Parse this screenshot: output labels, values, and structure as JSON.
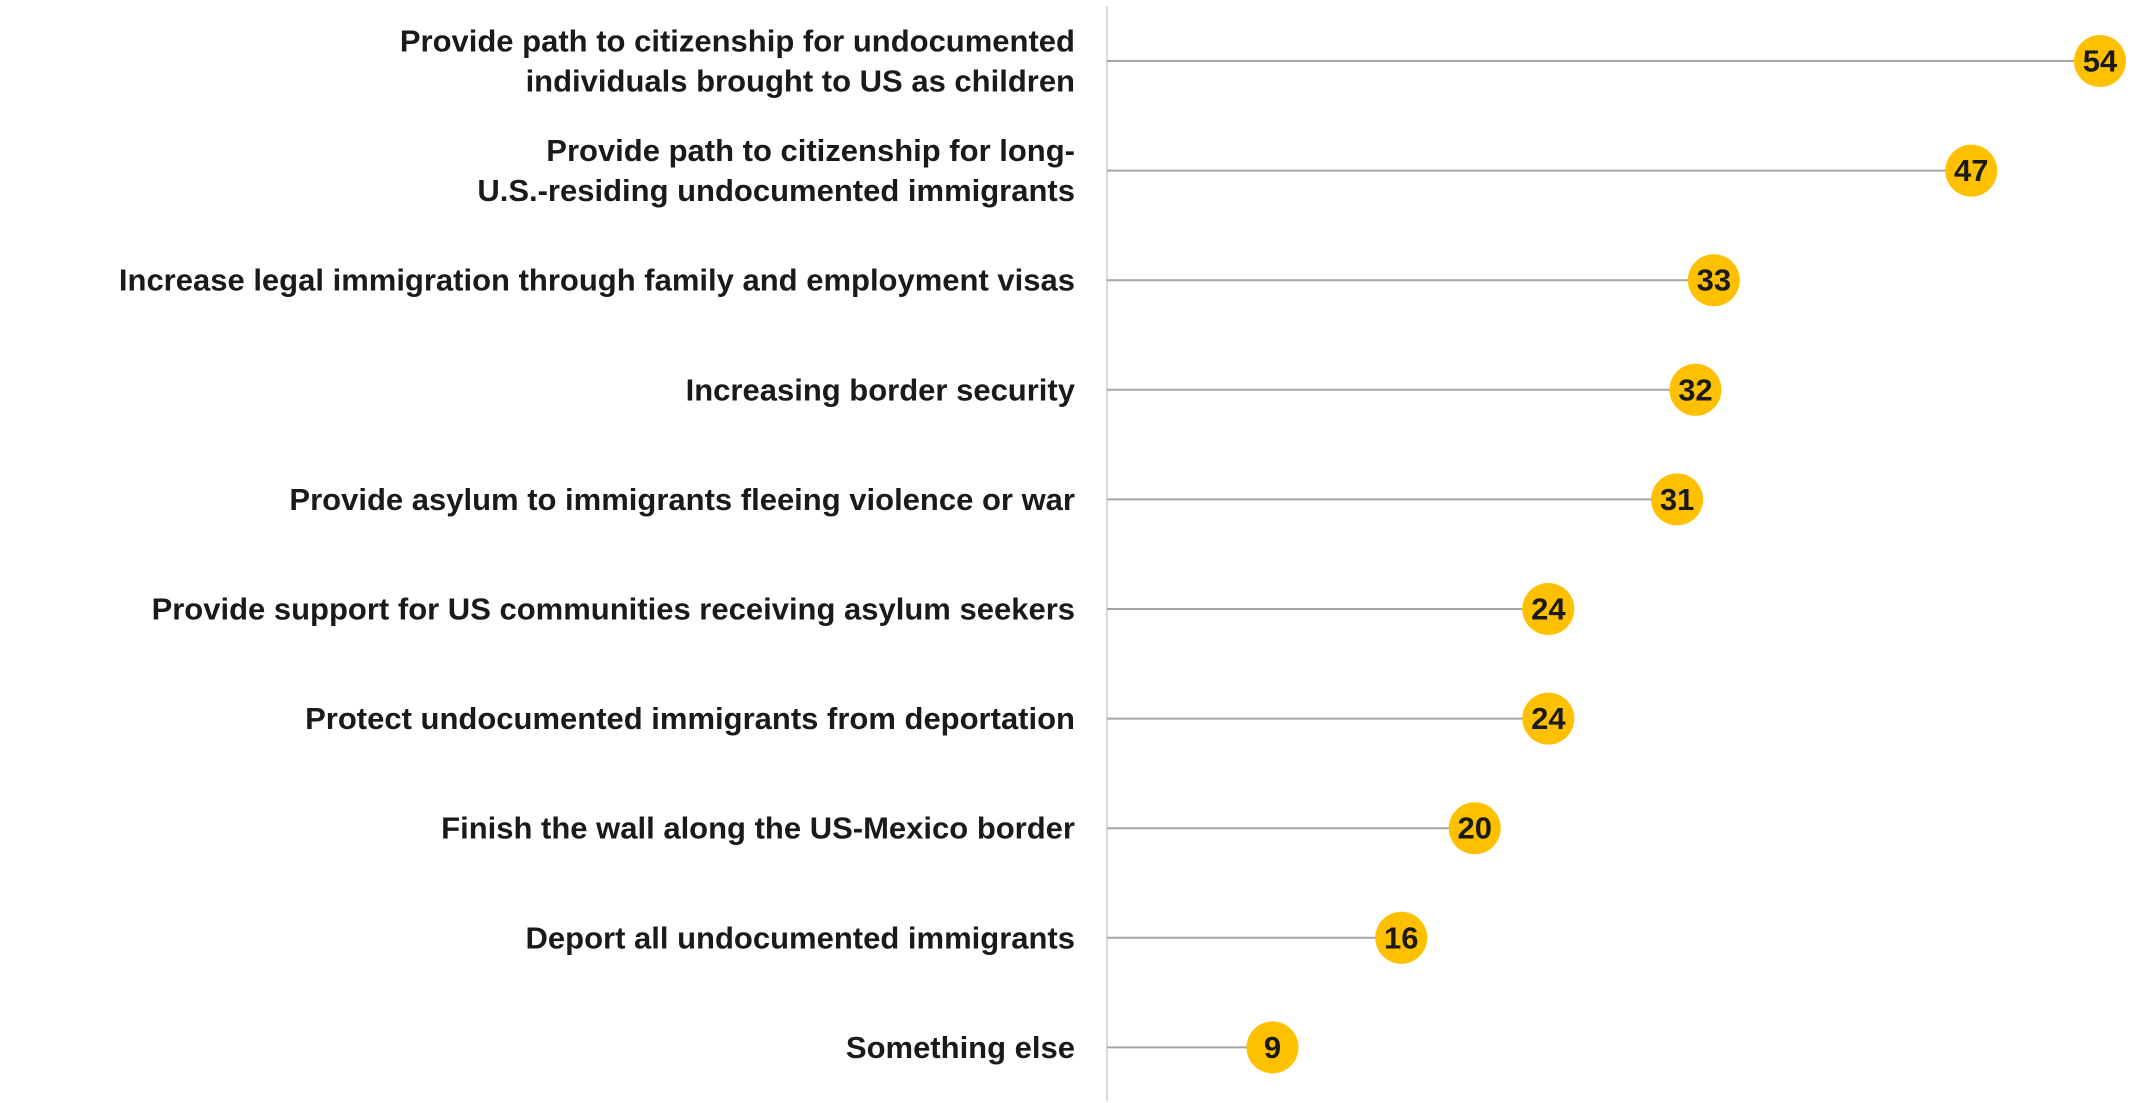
{
  "chart_data": {
    "type": "lollipop",
    "orientation": "horizontal",
    "title": "",
    "xlabel": "",
    "ylabel": "",
    "xlim": [
      0,
      54
    ],
    "grid": false,
    "legend": "none",
    "marker_color": "#ffc000",
    "stem_color": "#a6a6a6",
    "axis_color": "#d9d9d9",
    "categories": [
      [
        "Provide path to citizenship for undocumented",
        "individuals brought to US as children"
      ],
      [
        "Provide path to citizenship for long-",
        "U.S.-residing undocumented immigrants"
      ],
      [
        "Increase legal immigration through family and employment visas"
      ],
      [
        "Increasing border security"
      ],
      [
        "Provide asylum to immigrants fleeing violence or war"
      ],
      [
        "Provide support for US communities receiving asylum seekers"
      ],
      [
        "Protect undocumented immigrants from deportation"
      ],
      [
        "Finish the wall along the US-Mexico border"
      ],
      [
        "Deport all undocumented immigrants"
      ],
      [
        "Something else"
      ]
    ],
    "values": [
      54,
      47,
      33,
      32,
      31,
      24,
      24,
      20,
      16,
      9
    ]
  }
}
